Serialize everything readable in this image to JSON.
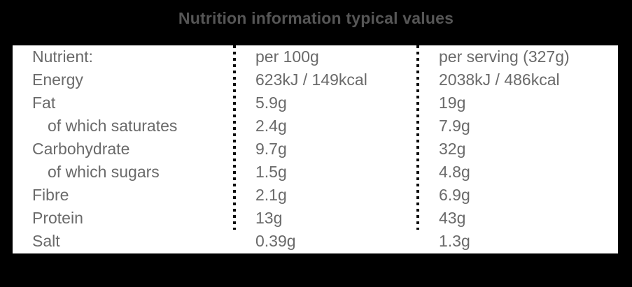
{
  "title": "Nutrition information typical values",
  "table": {
    "header": {
      "nutrient": "Nutrient:",
      "per_100g": "per 100g",
      "per_serving": "per serving (327g)"
    },
    "rows": [
      {
        "nutrient": "Energy",
        "per_100g": "623kJ / 149kcal",
        "per_serving": "2038kJ / 486kcal"
      },
      {
        "nutrient": "Fat",
        "per_100g": "5.9g",
        "per_serving": "19g"
      },
      {
        "nutrient": "of which saturates",
        "per_100g": "2.4g",
        "per_serving": "7.9g"
      },
      {
        "nutrient": "Carbohydrate",
        "per_100g": "9.7g",
        "per_serving": "32g"
      },
      {
        "nutrient": "of which sugars",
        "per_100g": "1.5g",
        "per_serving": "4.8g"
      },
      {
        "nutrient": "Fibre",
        "per_100g": "2.1g",
        "per_serving": "6.9g"
      },
      {
        "nutrient": "Protein",
        "per_100g": "13g",
        "per_serving": "43g"
      },
      {
        "nutrient": "Salt",
        "per_100g": "0.39g",
        "per_serving": "1.3g"
      }
    ]
  },
  "colors": {
    "background": "#000000",
    "panel": "#ffffff",
    "title_text": "#565656",
    "body_text": "#6a6a6a",
    "divider_dots": "#0a0a0a"
  }
}
